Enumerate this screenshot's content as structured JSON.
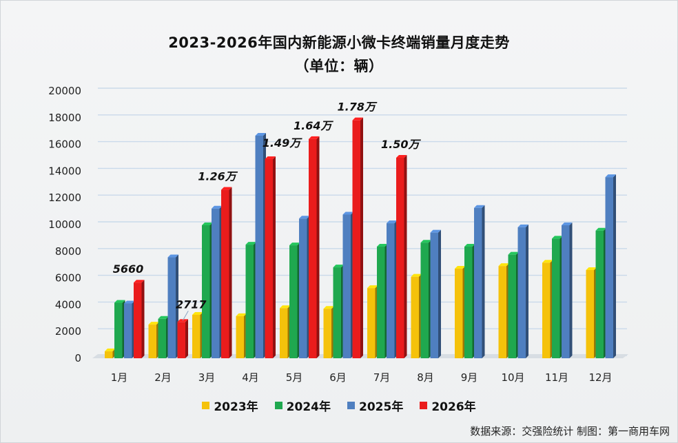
{
  "chart_data": {
    "type": "bar",
    "title": "2023-2026年国内新能源小微卡终端销量月度走势",
    "subtitle": "（单位：辆）",
    "categories": [
      "1月",
      "2月",
      "3月",
      "4月",
      "5月",
      "6月",
      "7月",
      "8月",
      "9月",
      "10月",
      "11月",
      "12月"
    ],
    "series": [
      {
        "name": "2023年",
        "color": "#f5c20b",
        "values": [
          520,
          2520,
          3250,
          3150,
          3750,
          3700,
          5250,
          6100,
          6700,
          6900,
          7150,
          6600
        ]
      },
      {
        "name": "2024年",
        "color": "#1fa84f",
        "values": [
          4150,
          2950,
          9950,
          8500,
          8450,
          6800,
          8350,
          8650,
          8350,
          7750,
          8950,
          9550
        ]
      },
      {
        "name": "2025年",
        "color": "#4f7fc0",
        "values": [
          4100,
          7550,
          11200,
          16650,
          10450,
          10750,
          10100,
          9400,
          11250,
          9800,
          9950,
          13550
        ]
      },
      {
        "name": "2026年",
        "color": "#ea1c1c",
        "values": [
          5660,
          2717,
          12600,
          14900,
          16400,
          17800,
          15000,
          null,
          null,
          null,
          null,
          null
        ]
      }
    ],
    "ylim": [
      0,
      20000
    ],
    "yticks": [
      0,
      2000,
      4000,
      6000,
      8000,
      10000,
      12000,
      14000,
      16000,
      18000,
      20000
    ],
    "grid": true,
    "legend_position": "bottom",
    "annotations": [
      {
        "category": "1月",
        "text": "5660"
      },
      {
        "category": "2月",
        "text": "2717"
      },
      {
        "category": "3月",
        "text": "1.26万"
      },
      {
        "category": "4月",
        "text": "1.49万"
      },
      {
        "category": "5月",
        "text": "1.64万"
      },
      {
        "category": "6月",
        "text": "1.78万"
      },
      {
        "category": "7月",
        "text": "1.50万"
      }
    ]
  },
  "title_line1": "2023-2026年国内新能源小微卡终端销量月度走势",
  "title_line2": "（单位：辆）",
  "legend": [
    {
      "label": "2023年",
      "color": "#f5c20b"
    },
    {
      "label": "2024年",
      "color": "#1fa84f"
    },
    {
      "label": "2025年",
      "color": "#4f7fc0"
    },
    {
      "label": "2026年",
      "color": "#ea1c1c"
    }
  ],
  "source": "数据来源：交强险统计 制图：第一商用车网"
}
